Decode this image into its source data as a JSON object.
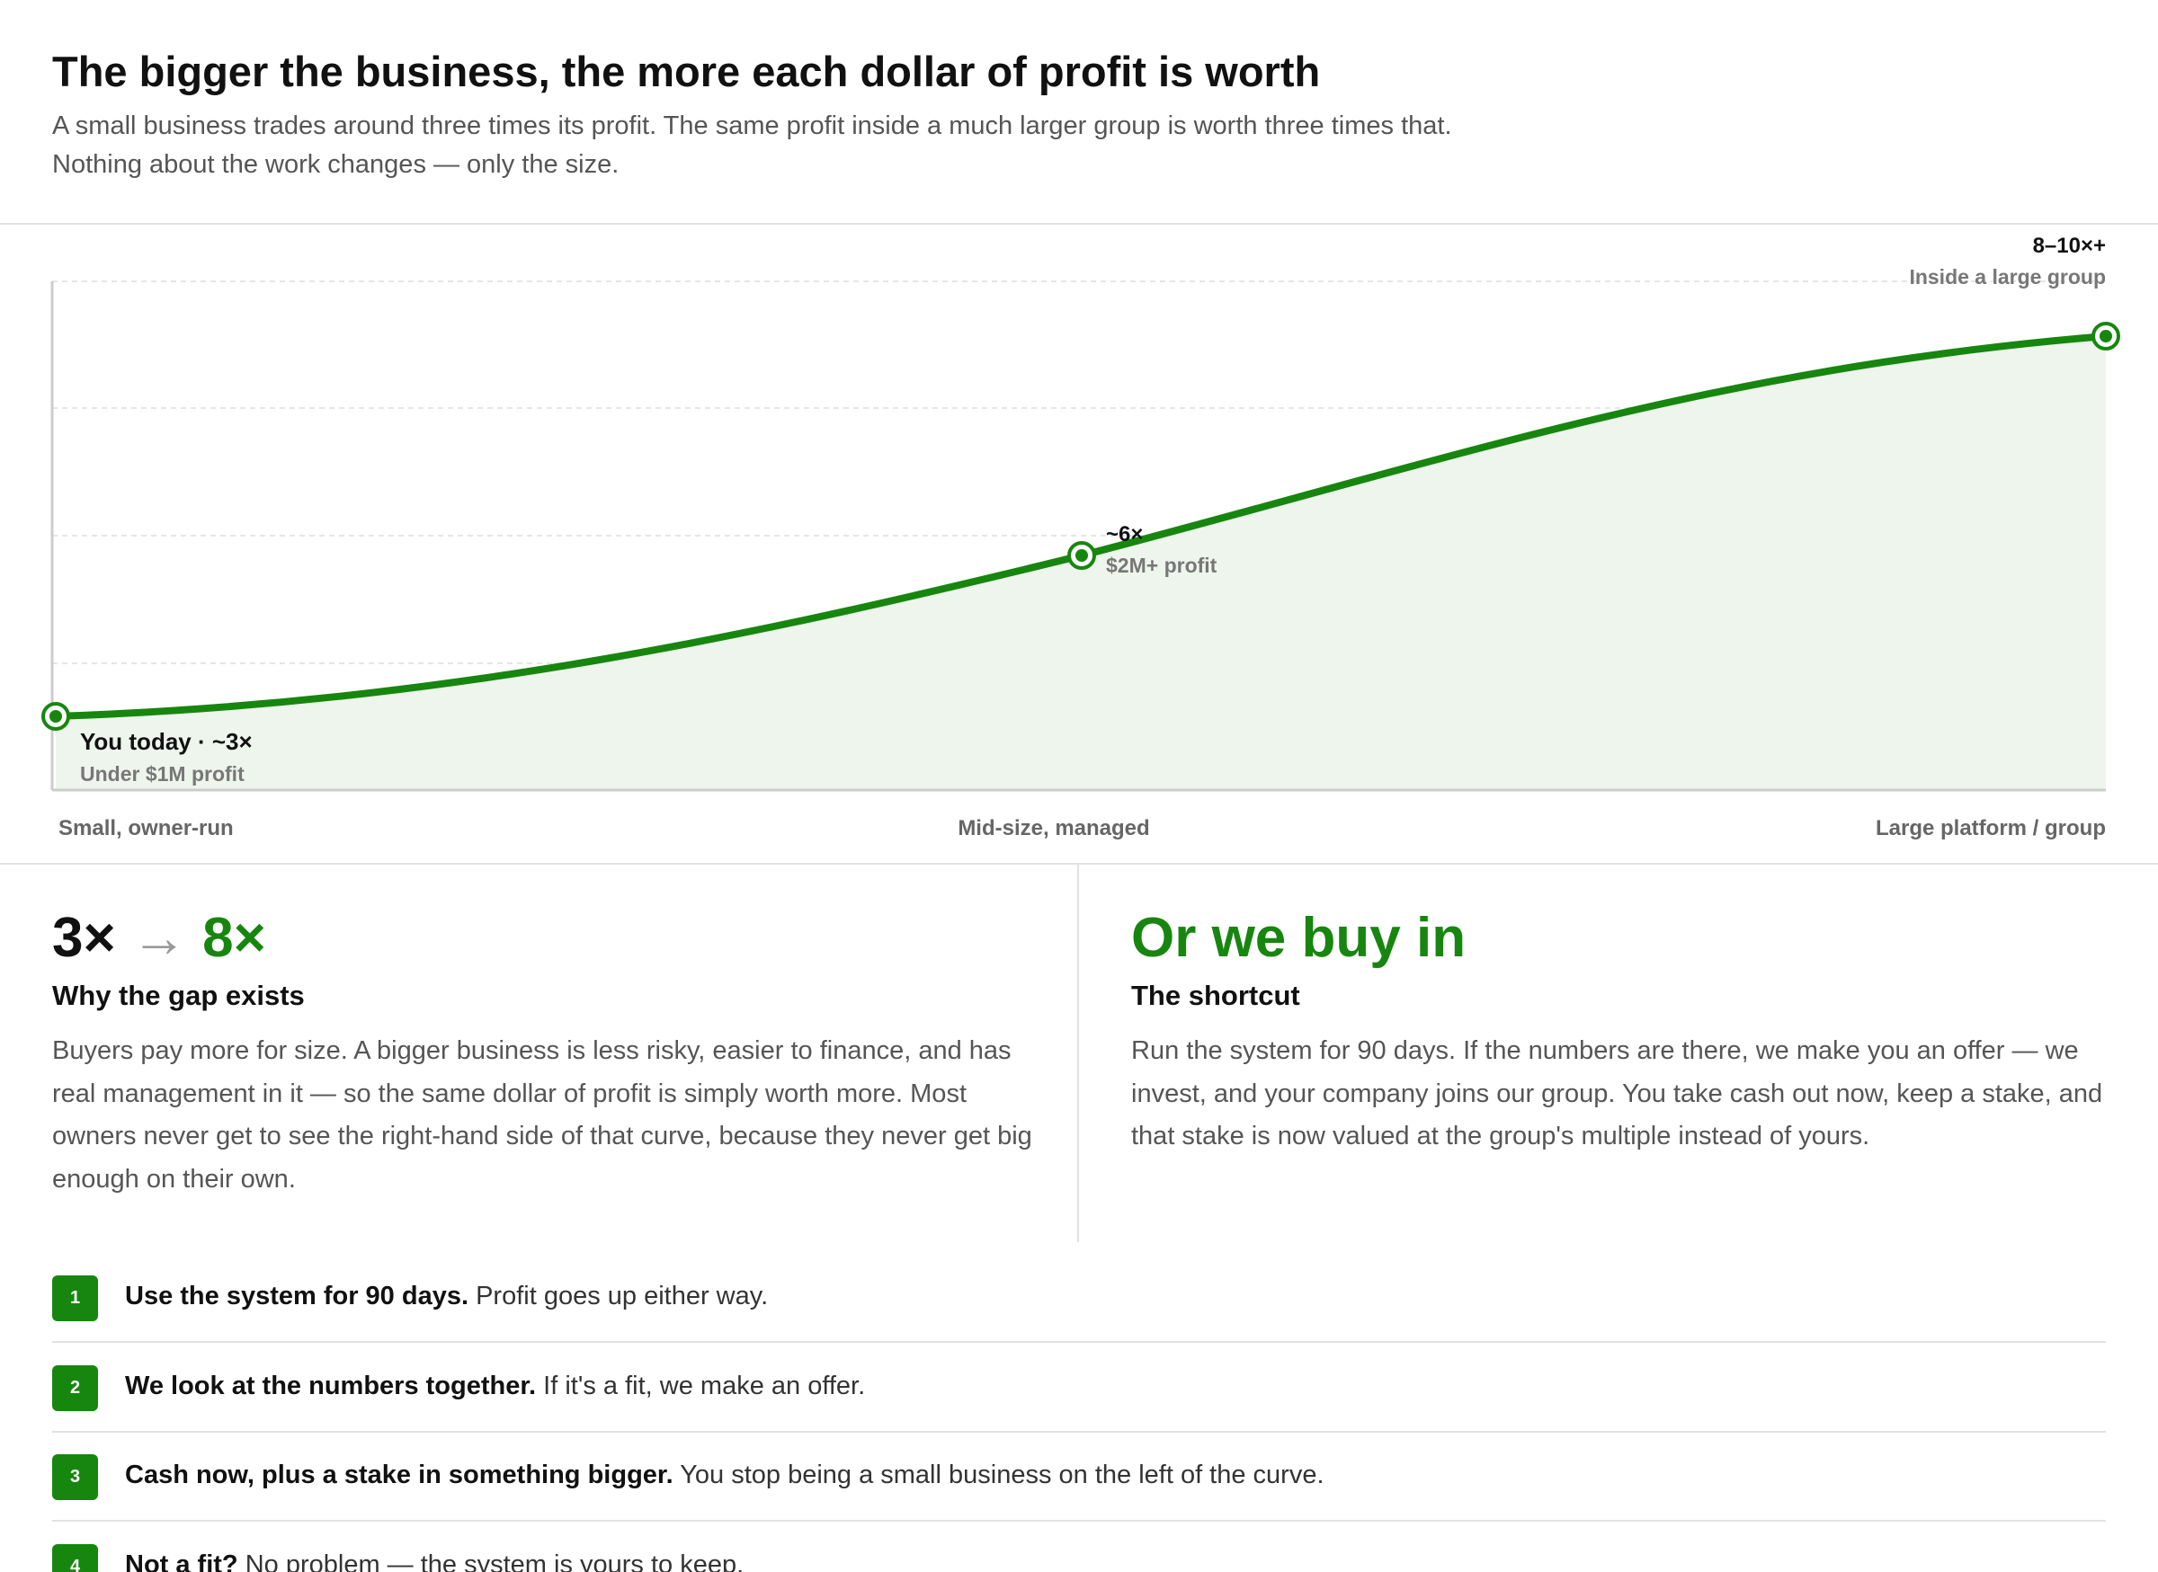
{
  "header": {
    "title": "The bigger the business, the more each dollar of profit is worth",
    "subtitle": [
      "A small business trades around three times its profit. The same profit inside a much larger group is worth three times that.",
      "Nothing about the work changes — only the size."
    ]
  },
  "chart": {
    "points": [
      {
        "label": "You today · ~3×",
        "sublabel": "Under $1M profit"
      },
      {
        "label": "~6×",
        "sublabel": "$2M+ profit"
      },
      {
        "label": "8–10×+",
        "sublabel": "Inside a large group"
      }
    ],
    "x_labels": [
      "Small, owner-run",
      "Mid-size, managed",
      "Large platform / group"
    ]
  },
  "left": {
    "from": "3×",
    "arrow": "→",
    "to": "8×",
    "heading": "Why the gap exists",
    "body": "Buyers pay more for size. A bigger business is less risky, easier to finance, and has real management in it — so the same dollar of profit is simply worth more. Most owners never get to see the right-hand side of that curve, because they never get big enough on their own."
  },
  "right": {
    "title": "Or we buy in",
    "heading": "The shortcut",
    "body": "Run the system for 90 days. If the numbers are there, we make you an offer — we invest, and your company joins our group. You take cash out now, keep a stake, and that stake is now valued at the group's multiple instead of yours."
  },
  "steps": [
    {
      "number": "1",
      "bold": "Use the system for 90 days.",
      "text": "Profit goes up either way."
    },
    {
      "number": "2",
      "bold": "We look at the numbers together.",
      "text": "If it's a fit, we make an offer."
    },
    {
      "number": "3",
      "bold": "Cash now, plus a stake in something bigger.",
      "text": "You stop being a small business on the left of the curve."
    },
    {
      "number": "4",
      "bold": "Not a fit?",
      "text": "No problem — the system is yours to keep."
    }
  ]
}
